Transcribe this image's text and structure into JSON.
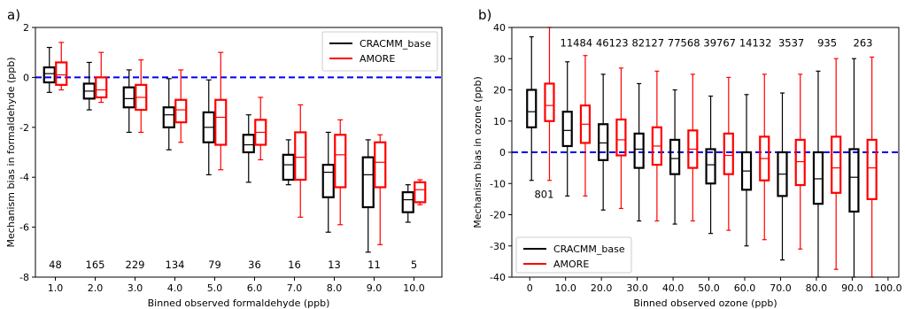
{
  "chart_data": [
    {
      "panel_label": "a)",
      "type": "box",
      "xlabel": "Binned observed formaldehyde (ppb)",
      "ylabel": "Mechanism bias in formaldehyde (ppb)",
      "xlim": [
        0.5,
        10.7
      ],
      "ylim": [
        -8,
        2
      ],
      "yticks": [
        2,
        0,
        -2,
        -4,
        -6,
        -8
      ],
      "categories": [
        "1.0",
        "2.0",
        "3.0",
        "4.0",
        "5.0",
        "6.0",
        "7.0",
        "8.0",
        "9.0",
        "10.0"
      ],
      "category_positions": [
        1,
        2,
        3,
        4,
        5,
        6,
        7,
        8,
        9,
        10
      ],
      "counts": [
        "48",
        "165",
        "229",
        "134",
        "79",
        "36",
        "16",
        "13",
        "11",
        "5"
      ],
      "count_y": -7.5,
      "legend": {
        "placement": "top-right",
        "entries": [
          "CRACMM_base",
          "AMORE"
        ]
      },
      "reference_line": {
        "y": 0,
        "style": "dashed",
        "color": "#0000ee"
      },
      "series": [
        {
          "name": "CRACMM_base",
          "color": "#000000",
          "boxes": [
            {
              "whislo": -0.6,
              "q1": -0.2,
              "med": 0.15,
              "q3": 0.4,
              "whishi": 1.2
            },
            {
              "whislo": -1.3,
              "q1": -0.85,
              "med": -0.55,
              "q3": -0.25,
              "whishi": 0.6
            },
            {
              "whislo": -2.2,
              "q1": -1.2,
              "med": -0.85,
              "q3": -0.4,
              "whishi": 0.3
            },
            {
              "whislo": -2.9,
              "q1": -2.0,
              "med": -1.5,
              "q3": -1.2,
              "whishi": -0.05
            },
            {
              "whislo": -3.9,
              "q1": -2.6,
              "med": -2.0,
              "q3": -1.4,
              "whishi": -0.1
            },
            {
              "whislo": -4.2,
              "q1": -3.0,
              "med": -2.7,
              "q3": -2.3,
              "whishi": -1.5
            },
            {
              "whislo": -4.3,
              "q1": -4.1,
              "med": -3.5,
              "q3": -3.1,
              "whishi": -2.5
            },
            {
              "whislo": -6.2,
              "q1": -4.8,
              "med": -3.8,
              "q3": -3.5,
              "whishi": -2.2
            },
            {
              "whislo": -7.0,
              "q1": -5.2,
              "med": -3.9,
              "q3": -3.2,
              "whishi": -2.5
            },
            {
              "whislo": -5.8,
              "q1": -5.4,
              "med": -4.9,
              "q3": -4.6,
              "whishi": -4.3
            }
          ]
        },
        {
          "name": "AMORE",
          "color": "#ff0000",
          "boxes": [
            {
              "whislo": -0.5,
              "q1": -0.3,
              "med": 0.1,
              "q3": 0.6,
              "whishi": 1.4
            },
            {
              "whislo": -1.0,
              "q1": -0.8,
              "med": -0.5,
              "q3": 0.0,
              "whishi": 1.0
            },
            {
              "whislo": -2.2,
              "q1": -1.3,
              "med": -0.8,
              "q3": -0.3,
              "whishi": 0.7
            },
            {
              "whislo": -2.6,
              "q1": -1.8,
              "med": -1.3,
              "q3": -0.9,
              "whishi": 0.3
            },
            {
              "whislo": -3.7,
              "q1": -2.7,
              "med": -1.6,
              "q3": -0.9,
              "whishi": 1.0
            },
            {
              "whislo": -3.3,
              "q1": -2.7,
              "med": -2.2,
              "q3": -1.7,
              "whishi": -0.8
            },
            {
              "whislo": -5.6,
              "q1": -4.1,
              "med": -3.2,
              "q3": -2.2,
              "whishi": -1.1
            },
            {
              "whislo": -5.9,
              "q1": -4.4,
              "med": -3.1,
              "q3": -2.3,
              "whishi": -1.7
            },
            {
              "whislo": -6.7,
              "q1": -4.4,
              "med": -3.4,
              "q3": -2.6,
              "whishi": -2.3
            },
            {
              "whislo": -5.1,
              "q1": -5.0,
              "med": -4.5,
              "q3": -4.2,
              "whishi": -4.1
            }
          ]
        }
      ]
    },
    {
      "panel_label": "b)",
      "type": "box",
      "xlabel": "Binned observed ozone (ppb)",
      "ylabel": "Mechanism bias in ozone (ppb)",
      "xlim": [
        -5,
        103
      ],
      "ylim": [
        -40,
        40
      ],
      "yticks": [
        40,
        30,
        20,
        10,
        0,
        -10,
        -20,
        -30,
        -40
      ],
      "categories": [
        "0",
        "10.0",
        "20.0",
        "30.0",
        "40.0",
        "50.0",
        "60.0",
        "70.0",
        "80.0",
        "90.0",
        "100.0"
      ],
      "category_positions": [
        0,
        10,
        20,
        30,
        40,
        50,
        60,
        70,
        80,
        90,
        100
      ],
      "box_positions": [
        3,
        13,
        23,
        33,
        43,
        53,
        63,
        73,
        83,
        93
      ],
      "counts": [
        {
          "text": "801",
          "x": 4,
          "y": -13.5
        },
        {
          "text": "11484",
          "x": 13,
          "y": 35
        },
        {
          "text": "46123",
          "x": 23,
          "y": 35
        },
        {
          "text": "82127",
          "x": 33,
          "y": 35
        },
        {
          "text": "77568",
          "x": 43,
          "y": 35
        },
        {
          "text": "39767",
          "x": 53,
          "y": 35
        },
        {
          "text": "14132",
          "x": 63,
          "y": 35
        },
        {
          "text": "3537",
          "x": 73,
          "y": 35
        },
        {
          "text": "935",
          "x": 83,
          "y": 35
        },
        {
          "text": "263",
          "x": 93,
          "y": 35
        }
      ],
      "legend": {
        "placement": "bottom-left",
        "entries": [
          "CRACMM_base",
          "AMORE"
        ]
      },
      "reference_line": {
        "y": 0,
        "style": "dashed",
        "color": "#0000ee"
      },
      "series": [
        {
          "name": "CRACMM_base",
          "color": "#000000",
          "boxes": [
            {
              "whislo": -9,
              "q1": 8,
              "med": 13,
              "q3": 20,
              "whishi": 37
            },
            {
              "whislo": -14,
              "q1": 2,
              "med": 7,
              "q3": 13,
              "whishi": 29
            },
            {
              "whislo": -18.5,
              "q1": -2.5,
              "med": 3,
              "q3": 9,
              "whishi": 25
            },
            {
              "whislo": -22,
              "q1": -5,
              "med": 1,
              "q3": 6,
              "whishi": 22
            },
            {
              "whislo": -23,
              "q1": -7,
              "med": -2,
              "q3": 4,
              "whishi": 20
            },
            {
              "whislo": -26,
              "q1": -10,
              "med": -4,
              "q3": 1,
              "whishi": 18
            },
            {
              "whislo": -30,
              "q1": -12,
              "med": -6,
              "q3": 0,
              "whishi": 18.5
            },
            {
              "whislo": -34.5,
              "q1": -14,
              "med": -7,
              "q3": 0,
              "whishi": 19
            },
            {
              "whislo": -40,
              "q1": -16.5,
              "med": -8.5,
              "q3": 0,
              "whishi": 26
            },
            {
              "whislo": -40,
              "q1": -19,
              "med": -8,
              "q3": 1,
              "whishi": 30
            }
          ]
        },
        {
          "name": "AMORE",
          "color": "#ff0000",
          "boxes": [
            {
              "whislo": -9,
              "q1": 10,
              "med": 15,
              "q3": 22,
              "whishi": 40
            },
            {
              "whislo": -14,
              "q1": 3,
              "med": 9,
              "q3": 15,
              "whishi": 31
            },
            {
              "whislo": -18,
              "q1": -1,
              "med": 4,
              "q3": 10.5,
              "whishi": 27
            },
            {
              "whislo": -22,
              "q1": -4,
              "med": 2,
              "q3": 8,
              "whishi": 26
            },
            {
              "whislo": -22,
              "q1": -5,
              "med": 1,
              "q3": 7,
              "whishi": 25
            },
            {
              "whislo": -25,
              "q1": -7,
              "med": -1,
              "q3": 6,
              "whishi": 24
            },
            {
              "whislo": -28,
              "q1": -9,
              "med": -2,
              "q3": 5,
              "whishi": 25
            },
            {
              "whislo": -31,
              "q1": -10.5,
              "med": -3,
              "q3": 4,
              "whishi": 25
            },
            {
              "whislo": -37.5,
              "q1": -13,
              "med": -5,
              "q3": 5,
              "whishi": 30
            },
            {
              "whislo": -40,
              "q1": -15,
              "med": -5,
              "q3": 4,
              "whishi": 30.5
            }
          ]
        }
      ]
    }
  ]
}
